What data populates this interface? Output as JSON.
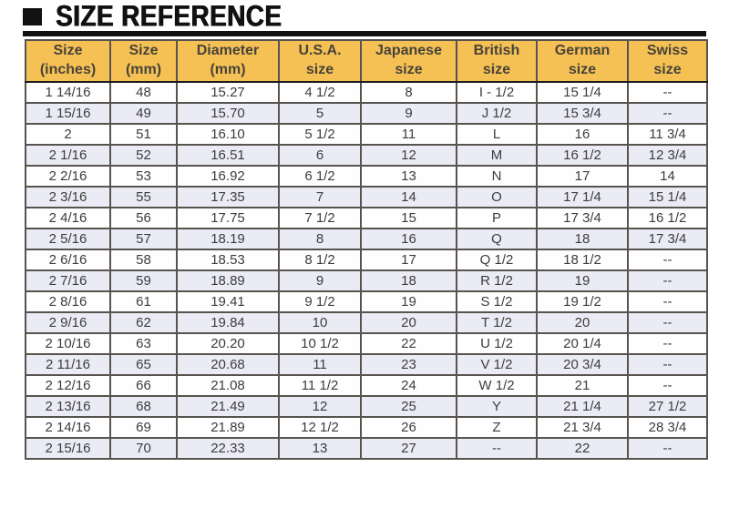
{
  "title": "SIZE REFERENCE",
  "colors": {
    "header_bg": "#f5c155",
    "alt_row_bg": "#eaebf5",
    "row_bg": "#fefefe",
    "grid_border": "#58534e",
    "outer_border": "#1d1d1d",
    "cell_text": "#3d3d3d",
    "header_text": "#47433a",
    "title_color": "#111111"
  },
  "table": {
    "headers": [
      "Size\n(inches)",
      "Size\n(mm)",
      "Diameter\n(mm)",
      "U.S.A.\nsize",
      "Japanese\nsize",
      "British\nsize",
      "German\nsize",
      "Swiss\nsize"
    ],
    "rows": [
      [
        "1 14/16",
        "48",
        "15.27",
        "4 1/2",
        "8",
        "I - 1/2",
        "15 1/4",
        "--"
      ],
      [
        "1 15/16",
        "49",
        "15.70",
        "5",
        "9",
        "J 1/2",
        "15 3/4",
        "--"
      ],
      [
        "2",
        "51",
        "16.10",
        "5 1/2",
        "11",
        "L",
        "16",
        "11 3/4"
      ],
      [
        "2 1/16",
        "52",
        "16.51",
        "6",
        "12",
        "M",
        "16 1/2",
        "12 3/4"
      ],
      [
        "2 2/16",
        "53",
        "16.92",
        "6 1/2",
        "13",
        "N",
        "17",
        "14"
      ],
      [
        "2 3/16",
        "55",
        "17.35",
        "7",
        "14",
        "O",
        "17 1/4",
        "15 1/4"
      ],
      [
        "2 4/16",
        "56",
        "17.75",
        "7 1/2",
        "15",
        "P",
        "17 3/4",
        "16 1/2"
      ],
      [
        "2 5/16",
        "57",
        "18.19",
        "8",
        "16",
        "Q",
        "18",
        "17 3/4"
      ],
      [
        "2 6/16",
        "58",
        "18.53",
        "8 1/2",
        "17",
        "Q 1/2",
        "18 1/2",
        "--"
      ],
      [
        "2 7/16",
        "59",
        "18.89",
        "9",
        "18",
        "R 1/2",
        "19",
        "--"
      ],
      [
        "2 8/16",
        "61",
        "19.41",
        "9 1/2",
        "19",
        "S 1/2",
        "19 1/2",
        "--"
      ],
      [
        "2 9/16",
        "62",
        "19.84",
        "10",
        "20",
        "T 1/2",
        "20",
        "--"
      ],
      [
        "2 10/16",
        "63",
        "20.20",
        "10 1/2",
        "22",
        "U 1/2",
        "20 1/4",
        "--"
      ],
      [
        "2 11/16",
        "65",
        "20.68",
        "11",
        "23",
        "V 1/2",
        "20 3/4",
        "--"
      ],
      [
        "2 12/16",
        "66",
        "21.08",
        "11 1/2",
        "24",
        "W 1/2",
        "21",
        "--"
      ],
      [
        "2 13/16",
        "68",
        "21.49",
        "12",
        "25",
        "Y",
        "21 1/4",
        "27 1/2"
      ],
      [
        "2 14/16",
        "69",
        "21.89",
        "12 1/2",
        "26",
        "Z",
        "21 3/4",
        "28 3/4"
      ],
      [
        "2 15/16",
        "70",
        "22.33",
        "13",
        "27",
        "--",
        "22",
        "--"
      ]
    ]
  }
}
